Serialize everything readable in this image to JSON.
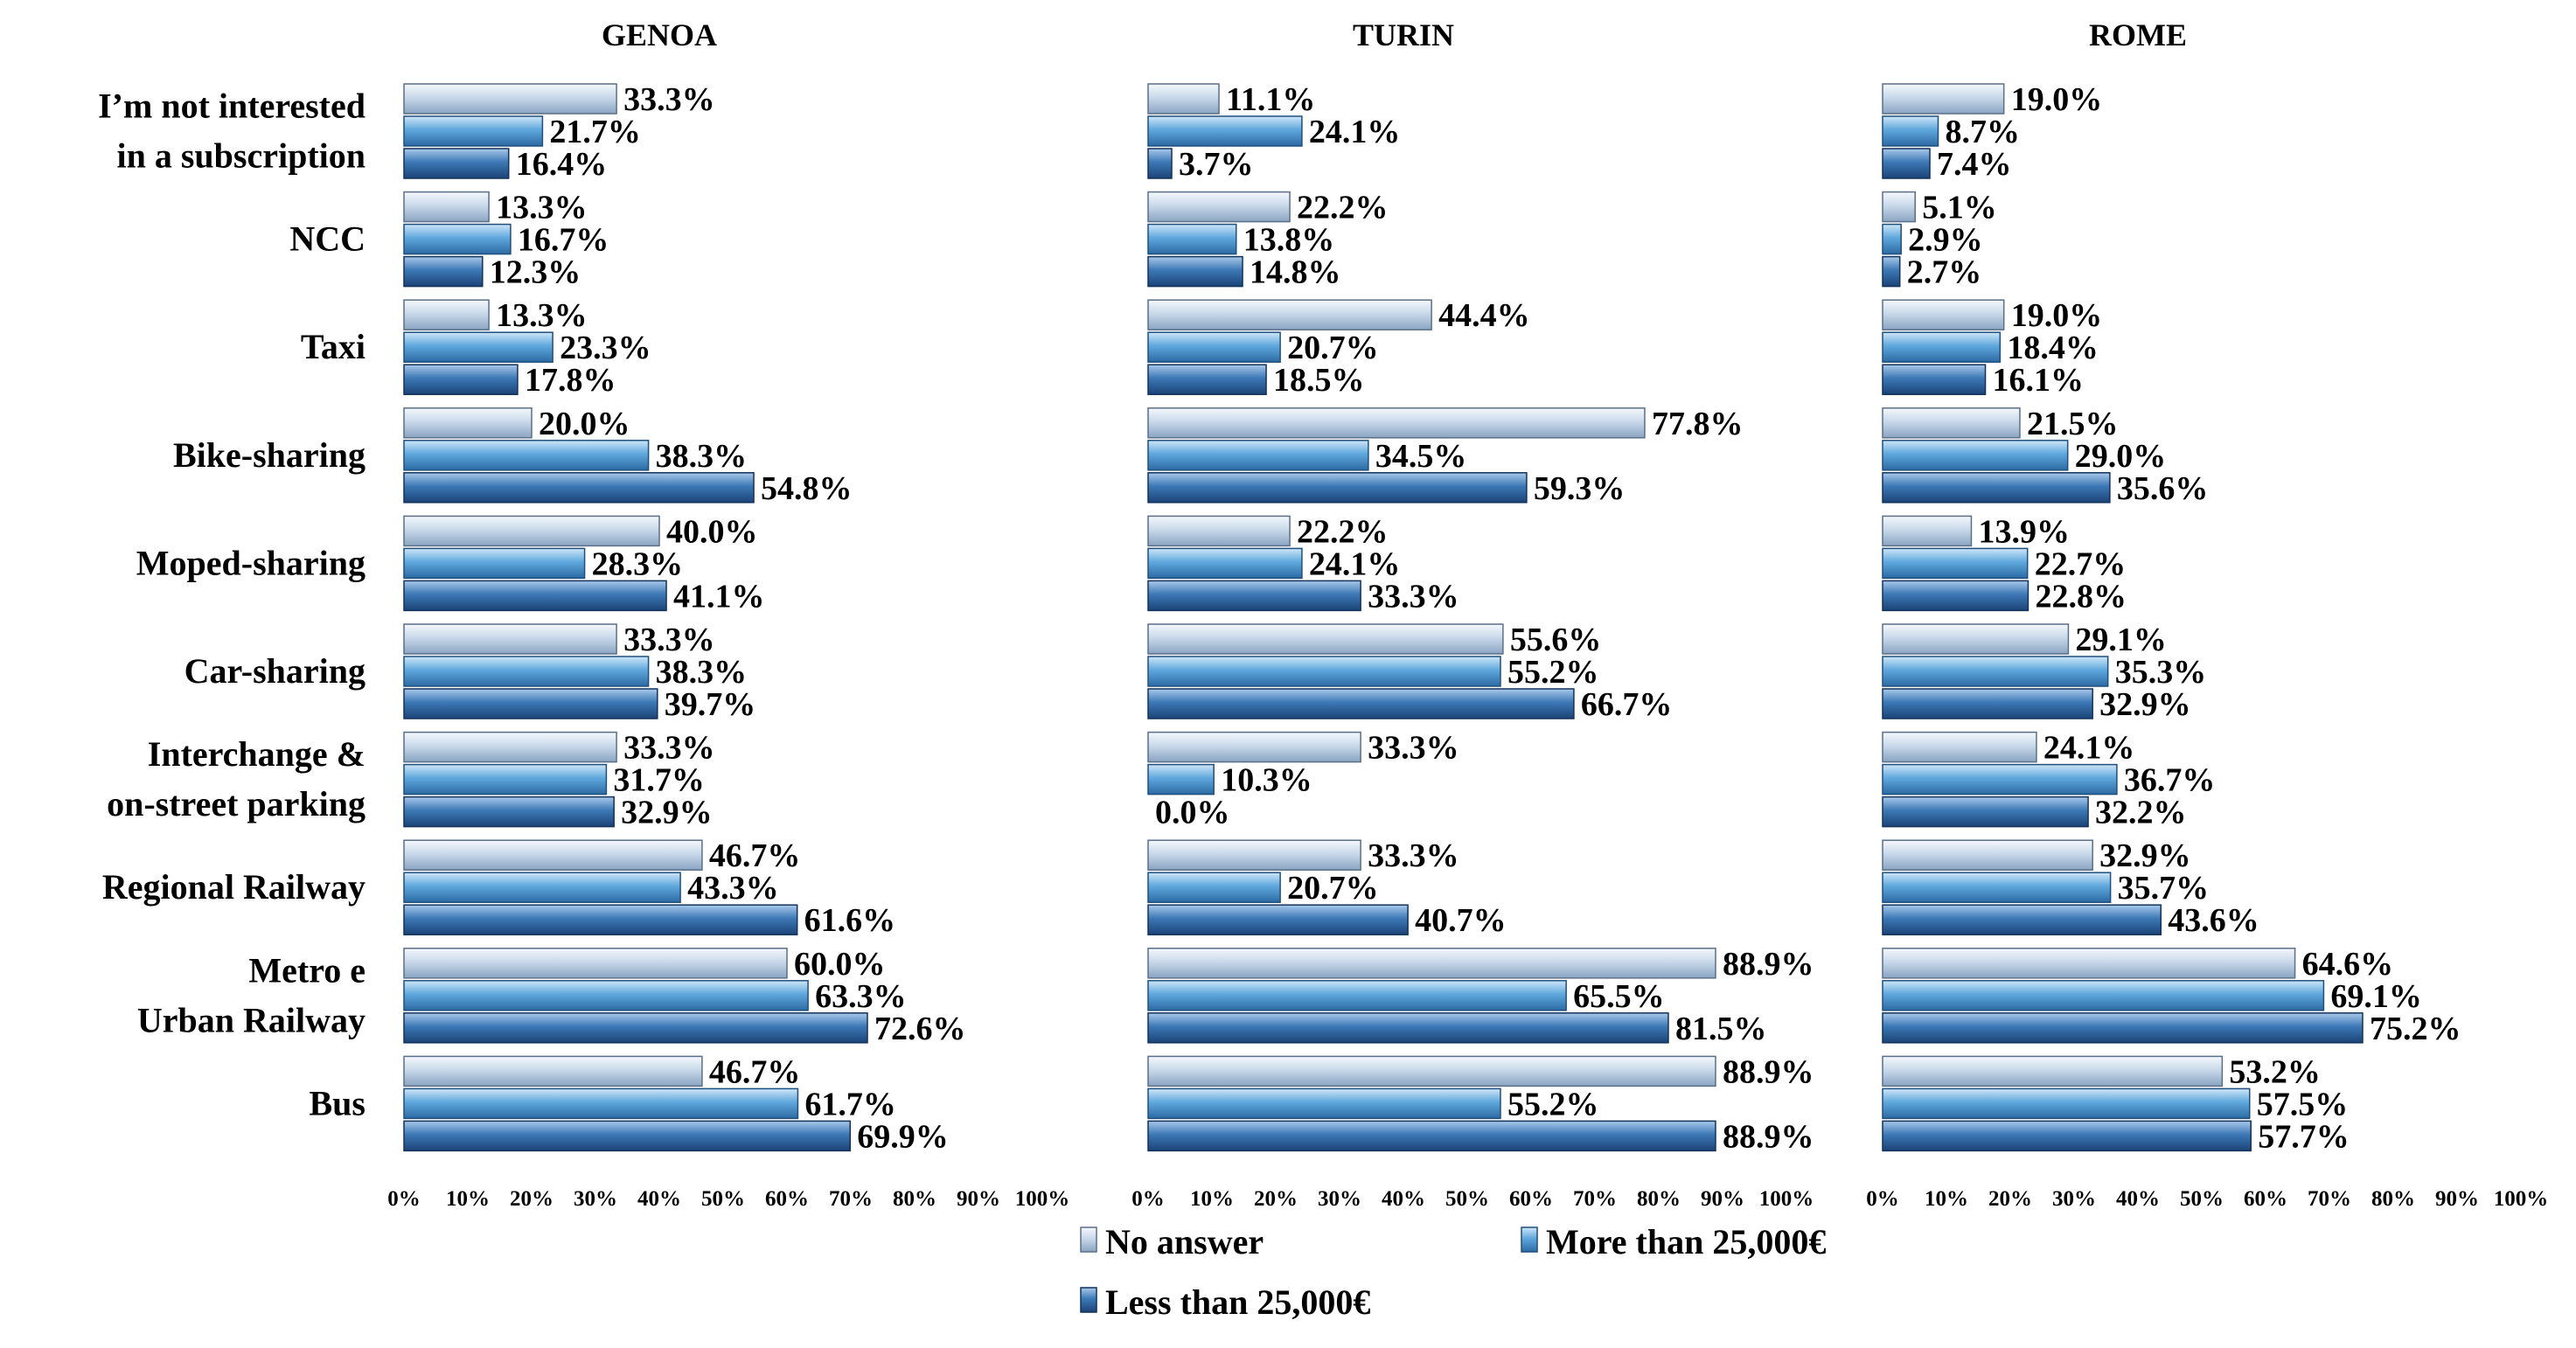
{
  "chart_data": {
    "type": "bar",
    "orientation": "horizontal",
    "categories": [
      "I’m not interested in a subscription",
      "NCC",
      "Taxi",
      "Bike-sharing",
      "Moped-sharing",
      "Car-sharing",
      "Interchange & on-street parking",
      "Regional Railway",
      "Metro e Urban Railway",
      "Bus"
    ],
    "category_lines": [
      [
        "I’m not interested",
        "in a subscription"
      ],
      [
        "NCC"
      ],
      [
        "Taxi"
      ],
      [
        "Bike-sharing"
      ],
      [
        "Moped-sharing"
      ],
      [
        "Car-sharing"
      ],
      [
        "Interchange &",
        "on-street parking"
      ],
      [
        "Regional Railway"
      ],
      [
        "Metro e",
        "Urban Railway"
      ],
      [
        "Bus"
      ]
    ],
    "xlim": [
      0,
      100
    ],
    "ticks": [
      "0%",
      "10%",
      "20%",
      "30%",
      "40%",
      "50%",
      "60%",
      "70%",
      "80%",
      "90%",
      "100%"
    ],
    "legend": {
      "position": "bottom",
      "entries": [
        "No answer",
        "More than 25,000€",
        "Less than 25,000€"
      ]
    },
    "series_colors": {
      "No answer": "#c9d9ea",
      "More than 25,000€": "#5fa8dd",
      "Less than 25,000€": "#3d79b6"
    },
    "panels": [
      {
        "title": "GENOA",
        "series": [
          {
            "name": "No answer",
            "values": [
              33.3,
              13.3,
              13.3,
              20.0,
              40.0,
              33.3,
              33.3,
              46.7,
              60.0,
              46.7
            ],
            "labels": [
              "33.3%",
              "13.3%",
              "13.3%",
              "20.0%",
              "40.0%",
              "33.3%",
              "33.3%",
              "46.7%",
              "60.0%",
              "46.7%"
            ]
          },
          {
            "name": "More than 25,000€",
            "values": [
              21.7,
              16.7,
              23.3,
              38.3,
              28.3,
              38.3,
              31.7,
              43.3,
              63.3,
              61.7
            ],
            "labels": [
              "21.7%",
              "16.7%",
              "23.3%",
              "38.3%",
              "28.3%",
              "38.3%",
              "31.7%",
              "43.3%",
              "63.3%",
              "61.7%"
            ]
          },
          {
            "name": "Less than 25,000€",
            "values": [
              16.4,
              12.3,
              17.8,
              54.8,
              41.1,
              39.7,
              32.9,
              61.6,
              72.6,
              69.9
            ],
            "labels": [
              "16.4%",
              "12.3%",
              "17.8%",
              "54.8%",
              "41.1%",
              "39.7%",
              "32.9%",
              "61.6%",
              "72.6%",
              "69.9%"
            ]
          }
        ]
      },
      {
        "title": "TURIN",
        "series": [
          {
            "name": "No answer",
            "values": [
              11.1,
              22.2,
              44.4,
              77.8,
              22.2,
              55.6,
              33.3,
              33.3,
              88.9,
              88.9
            ],
            "labels": [
              "11.1%",
              "22.2%",
              "44.4%",
              "77.8%",
              "22.2%",
              "55.6%",
              "33.3%",
              "33.3%",
              "88.9%",
              "88.9%"
            ]
          },
          {
            "name": "More than 25,000€",
            "values": [
              24.1,
              13.8,
              20.7,
              34.5,
              24.1,
              55.2,
              10.3,
              20.7,
              65.5,
              55.2
            ],
            "labels": [
              "24.1%",
              "13.8%",
              "20.7%",
              "34.5%",
              "24.1%",
              "55.2%",
              "10.3%",
              "20.7%",
              "65.5%",
              "55.2%"
            ]
          },
          {
            "name": "Less than 25,000€",
            "values": [
              3.7,
              14.8,
              18.5,
              59.3,
              33.3,
              66.7,
              0.0,
              40.7,
              81.5,
              88.9
            ],
            "labels": [
              "3.7%",
              "14.8%",
              "18.5%",
              "59.3%",
              "33.3%",
              "66.7%",
              "0.0%",
              "40.7%",
              "81.5%",
              "88.9%"
            ]
          }
        ]
      },
      {
        "title": "ROME",
        "series": [
          {
            "name": "No answer",
            "values": [
              19.0,
              5.1,
              19.0,
              21.5,
              13.9,
              29.1,
              24.1,
              32.9,
              64.6,
              53.2
            ],
            "labels": [
              "19.0%",
              "5.1%",
              "19.0%",
              "21.5%",
              "13.9%",
              "29.1%",
              "24.1%",
              "32.9%",
              "64.6%",
              "53.2%"
            ]
          },
          {
            "name": "More than 25,000€",
            "values": [
              8.7,
              2.9,
              18.4,
              29.0,
              22.7,
              35.3,
              36.7,
              35.7,
              69.1,
              57.5
            ],
            "labels": [
              "8.7%",
              "2.9%",
              "18.4%",
              "29.0%",
              "22.7%",
              "35.3%",
              "36.7%",
              "35.7%",
              "69.1%",
              "57.5%"
            ]
          },
          {
            "name": "Less than 25,000€",
            "values": [
              7.4,
              2.7,
              16.1,
              35.6,
              22.8,
              32.9,
              32.2,
              43.6,
              75.2,
              57.7
            ],
            "labels": [
              "7.4%",
              "2.7%",
              "16.1%",
              "35.6%",
              "22.8%",
              "32.9%",
              "32.2%",
              "43.6%",
              "75.2%",
              "57.7%"
            ]
          }
        ]
      }
    ]
  }
}
